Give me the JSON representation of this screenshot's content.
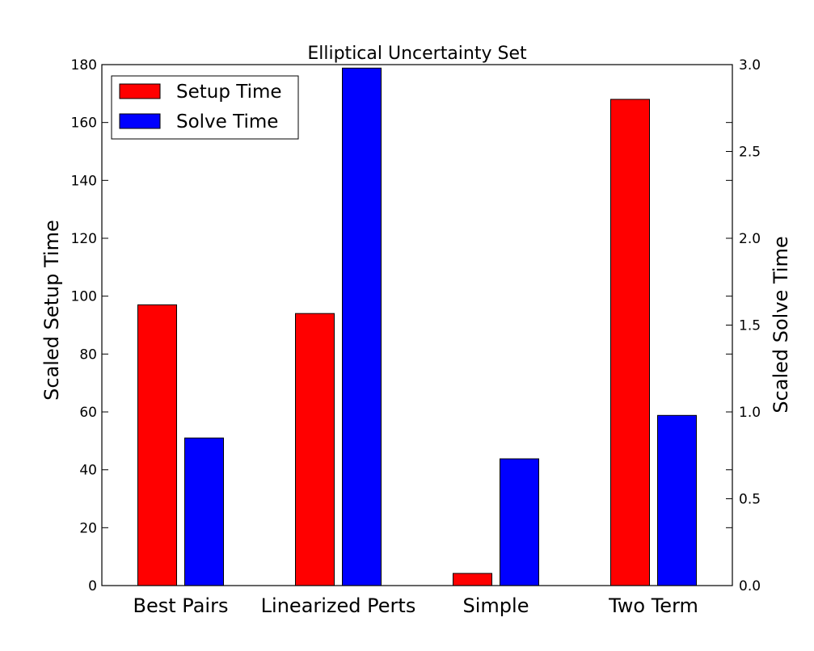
{
  "chart_data": {
    "type": "bar",
    "title": "Elliptical Uncertainty Set",
    "categories": [
      "Best Pairs",
      "Linearized Perts",
      "Simple",
      "Two Term"
    ],
    "series": [
      {
        "name": "Setup Time",
        "axis": "left",
        "color": "#ff0000",
        "values": [
          97,
          94,
          4.2,
          168
        ]
      },
      {
        "name": "Solve Time",
        "axis": "right",
        "color": "#0000ff",
        "values": [
          0.85,
          2.98,
          0.73,
          0.98
        ]
      }
    ],
    "ylabel": "Scaled Setup Time",
    "ylabel_right": "Scaled Solve Time",
    "ylim": [
      0,
      180
    ],
    "ylim_right": [
      0,
      3.0
    ],
    "yticks": [
      "0",
      "20",
      "40",
      "60",
      "80",
      "100",
      "120",
      "140",
      "160",
      "180"
    ],
    "yticks_right": [
      "0.0",
      "0.5",
      "1.0",
      "1.5",
      "2.0",
      "2.5",
      "3.0"
    ],
    "legend": {
      "position": "top-left",
      "entries": [
        "Setup Time",
        "Solve Time"
      ]
    },
    "grid": false
  }
}
